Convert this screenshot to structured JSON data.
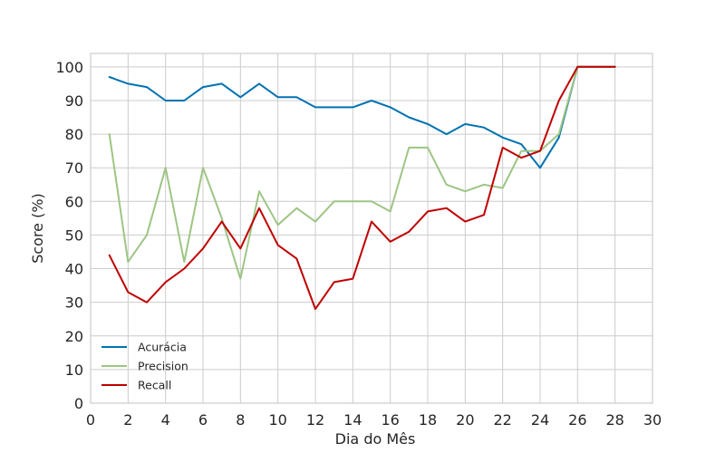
{
  "chart_data": {
    "type": "line",
    "title": "",
    "xlabel": "Dia do Mês",
    "ylabel": "Score (%)",
    "xlim": [
      0,
      30
    ],
    "ylim": [
      0,
      104
    ],
    "xticks": [
      0,
      2,
      4,
      6,
      8,
      10,
      12,
      14,
      16,
      18,
      20,
      22,
      24,
      26,
      28,
      30
    ],
    "yticks": [
      0,
      10,
      20,
      30,
      40,
      50,
      60,
      70,
      80,
      90,
      100
    ],
    "grid": true,
    "legend_position": "bottom-left",
    "x": [
      1,
      2,
      3,
      4,
      5,
      6,
      7,
      8,
      9,
      10,
      11,
      12,
      13,
      14,
      15,
      16,
      17,
      18,
      19,
      20,
      21,
      22,
      23,
      24,
      25,
      26,
      27,
      28
    ],
    "series": [
      {
        "name": "Acurácia",
        "color": "#0072B2",
        "values": [
          97,
          95,
          94,
          90,
          90,
          94,
          95,
          91,
          95,
          91,
          91,
          88,
          88,
          88,
          90,
          88,
          85,
          83,
          80,
          83,
          82,
          79,
          77,
          70,
          79,
          100,
          100,
          100
        ]
      },
      {
        "name": "Precision",
        "color": "#9DC584",
        "values": [
          80,
          42,
          50,
          70,
          42,
          70,
          55,
          37,
          63,
          53,
          58,
          54,
          60,
          60,
          60,
          57,
          76,
          76,
          65,
          63,
          65,
          64,
          75,
          75,
          80,
          100,
          100,
          100
        ]
      },
      {
        "name": "Recall",
        "color": "#C00000",
        "values": [
          44,
          33,
          30,
          36,
          40,
          46,
          54,
          46,
          58,
          47,
          43,
          28,
          36,
          37,
          54,
          48,
          51,
          57,
          58,
          54,
          56,
          76,
          73,
          75,
          90,
          100,
          100,
          100
        ]
      }
    ]
  }
}
